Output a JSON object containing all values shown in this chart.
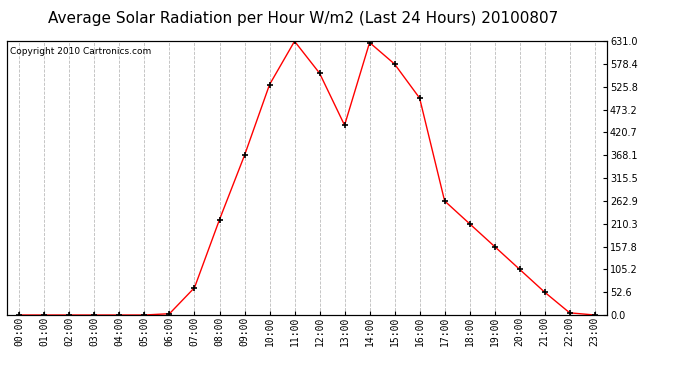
{
  "title": "Average Solar Radiation per Hour W/m2 (Last 24 Hours) 20100807",
  "copyright_text": "Copyright 2010 Cartronics.com",
  "hours": [
    "00:00",
    "01:00",
    "02:00",
    "03:00",
    "04:00",
    "05:00",
    "06:00",
    "07:00",
    "08:00",
    "09:00",
    "10:00",
    "11:00",
    "12:00",
    "13:00",
    "14:00",
    "15:00",
    "16:00",
    "17:00",
    "18:00",
    "19:00",
    "20:00",
    "21:00",
    "22:00",
    "23:00"
  ],
  "values": [
    0.0,
    0.0,
    0.0,
    0.0,
    0.0,
    0.0,
    3.0,
    63.0,
    220.0,
    368.1,
    531.0,
    631.0,
    557.4,
    437.4,
    628.0,
    578.4,
    500.0,
    262.9,
    210.3,
    157.8,
    105.2,
    52.6,
    5.0,
    0.0
  ],
  "line_color": "#ff0000",
  "marker": "+",
  "marker_size": 5,
  "marker_color": "#000000",
  "bg_color": "#ffffff",
  "grid_color": "#bbbbbb",
  "ymin": 0.0,
  "ymax": 631.0,
  "yticks": [
    0.0,
    52.6,
    105.2,
    157.8,
    210.3,
    262.9,
    315.5,
    368.1,
    420.7,
    473.2,
    525.8,
    578.4,
    631.0
  ],
  "ytick_labels": [
    "0.0",
    "52.6",
    "105.2",
    "157.8",
    "210.3",
    "262.9",
    "315.5",
    "368.1",
    "420.7",
    "473.2",
    "525.8",
    "578.4",
    "631.0"
  ],
  "title_fontsize": 11,
  "copyright_fontsize": 6.5,
  "tick_fontsize": 7,
  "axis_bg_color": "#ffffff"
}
